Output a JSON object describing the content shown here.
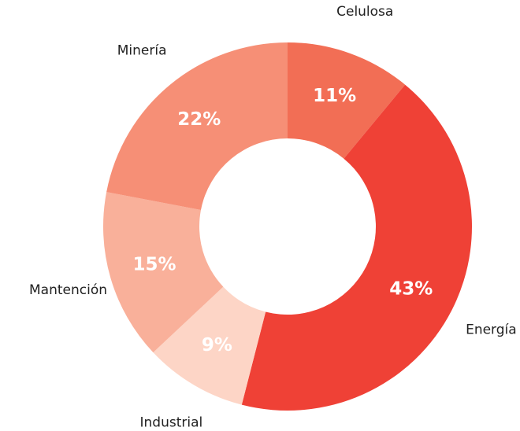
{
  "chart_data": {
    "type": "donut",
    "categories": [
      "Celulosa",
      "Energía",
      "Industrial",
      "Mantención",
      "Minería"
    ],
    "values": [
      11,
      43,
      9,
      15,
      22
    ],
    "value_labels": [
      "11%",
      "43%",
      "9%",
      "15%",
      "22%"
    ],
    "colors": [
      "#f26e55",
      "#ef4136",
      "#fdd5c6",
      "#f9b09a",
      "#f68f76"
    ]
  }
}
